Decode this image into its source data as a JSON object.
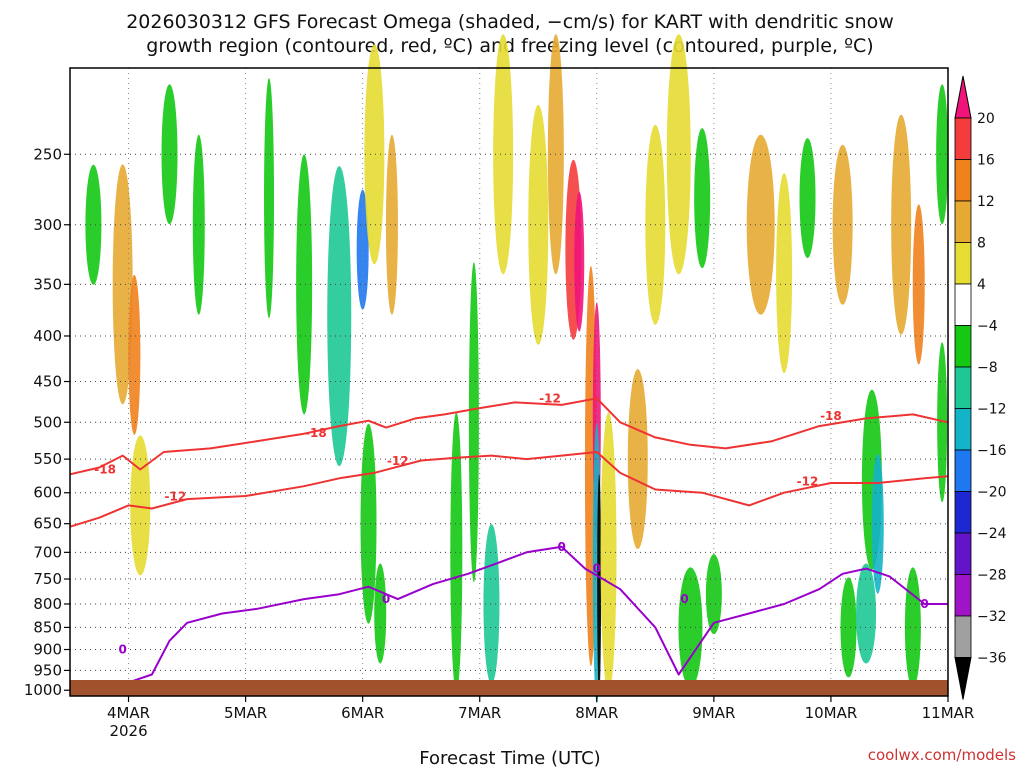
{
  "chart_data": {
    "type": "heatmap",
    "title_line1": "2026030312 GFS Forecast Omega (shaded, −cm/s) for KART with dendritic snow",
    "title_line2": "growth region (contoured, red, ºC) and freezing level (contoured, purple, ºC)",
    "xlabel": "Forecast Time (UTC)",
    "ylabel": "",
    "credit": "coolwx.com/models",
    "x_ticks": [
      {
        "t": 0.5,
        "label": "4MAR",
        "sub": "2026"
      },
      {
        "t": 1.5,
        "label": "5MAR",
        "sub": ""
      },
      {
        "t": 2.5,
        "label": "6MAR",
        "sub": ""
      },
      {
        "t": 3.5,
        "label": "7MAR",
        "sub": ""
      },
      {
        "t": 4.5,
        "label": "8MAR",
        "sub": ""
      },
      {
        "t": 5.5,
        "label": "9MAR",
        "sub": ""
      },
      {
        "t": 6.5,
        "label": "10MAR",
        "sub": ""
      },
      {
        "t": 7.5,
        "label": "11MAR",
        "sub": ""
      }
    ],
    "x_range_days": [
      0,
      7.5
    ],
    "y_ticks": [
      250,
      300,
      350,
      400,
      450,
      500,
      550,
      600,
      650,
      700,
      750,
      800,
      850,
      900,
      950,
      1000
    ],
    "y_range_hpa": [
      200,
      1015
    ],
    "colorbar": {
      "labels": [
        "20",
        "16",
        "12",
        "8",
        "4",
        "−4",
        "−8",
        "−12",
        "−16",
        "−20",
        "−24",
        "−28",
        "−32",
        "−36"
      ],
      "colors": [
        "#f0147a",
        "#f53c3c",
        "#f0821e",
        "#e6aa32",
        "#e6dc32",
        "#ffffff",
        "#14c814",
        "#1ec896",
        "#14b4c8",
        "#1e78f0",
        "#1e28d2",
        "#6414c8",
        "#a014c8",
        "#a0a0a0",
        "#000000"
      ],
      "top_color": "#f0147a",
      "bottom_color": "#000000"
    },
    "contour_labels_red": [
      "-18",
      "-18",
      "-18",
      "-12",
      "-12",
      "-12",
      "-12"
    ],
    "contour_labels_purple": [
      "0",
      "0",
      "0",
      "0",
      "0",
      "0"
    ],
    "series": [
      {
        "name": "-18 ºC isotherm",
        "color": "#ee3333",
        "x": [
          0,
          0.25,
          0.45,
          0.6,
          0.8,
          1.2,
          1.6,
          2.0,
          2.3,
          2.55,
          2.7,
          2.95,
          3.2,
          3.5,
          3.8,
          4.2,
          4.5,
          4.7,
          5.0,
          5.3,
          5.6,
          6.0,
          6.4,
          6.8,
          7.2,
          7.5
        ],
        "y": [
          572,
          562,
          545,
          565,
          540,
          535,
          525,
          515,
          505,
          498,
          507,
          495,
          490,
          482,
          475,
          478,
          470,
          500,
          520,
          530,
          535,
          525,
          505,
          495,
          490,
          500
        ]
      },
      {
        "name": "-12 ºC isotherm",
        "color": "#ee3333",
        "x": [
          0,
          0.25,
          0.5,
          0.7,
          1.0,
          1.5,
          2.0,
          2.3,
          2.6,
          3.0,
          3.3,
          3.6,
          3.9,
          4.2,
          4.5,
          4.7,
          5.0,
          5.4,
          5.8,
          6.1,
          6.5,
          6.9,
          7.3,
          7.5
        ],
        "y": [
          655,
          640,
          620,
          625,
          610,
          605,
          590,
          578,
          570,
          552,
          548,
          545,
          550,
          545,
          540,
          570,
          595,
          600,
          620,
          600,
          585,
          585,
          578,
          575
        ]
      },
      {
        "name": "0 ºC freezing level",
        "color": "#9900cc",
        "x": [
          0.3,
          0.5,
          0.7,
          0.85,
          1.0,
          1.3,
          1.6,
          2.0,
          2.3,
          2.55,
          2.8,
          3.1,
          3.4,
          3.65,
          3.9,
          4.2,
          4.4,
          4.7,
          5.0,
          5.2,
          5.5,
          5.8,
          6.1,
          6.4,
          6.6,
          6.8,
          7.0,
          7.3,
          7.5
        ],
        "y": [
          1005,
          980,
          960,
          880,
          840,
          820,
          810,
          790,
          780,
          765,
          790,
          760,
          740,
          720,
          700,
          690,
          730,
          770,
          850,
          960,
          840,
          820,
          800,
          770,
          740,
          730,
          745,
          800,
          800
        ]
      }
    ]
  }
}
